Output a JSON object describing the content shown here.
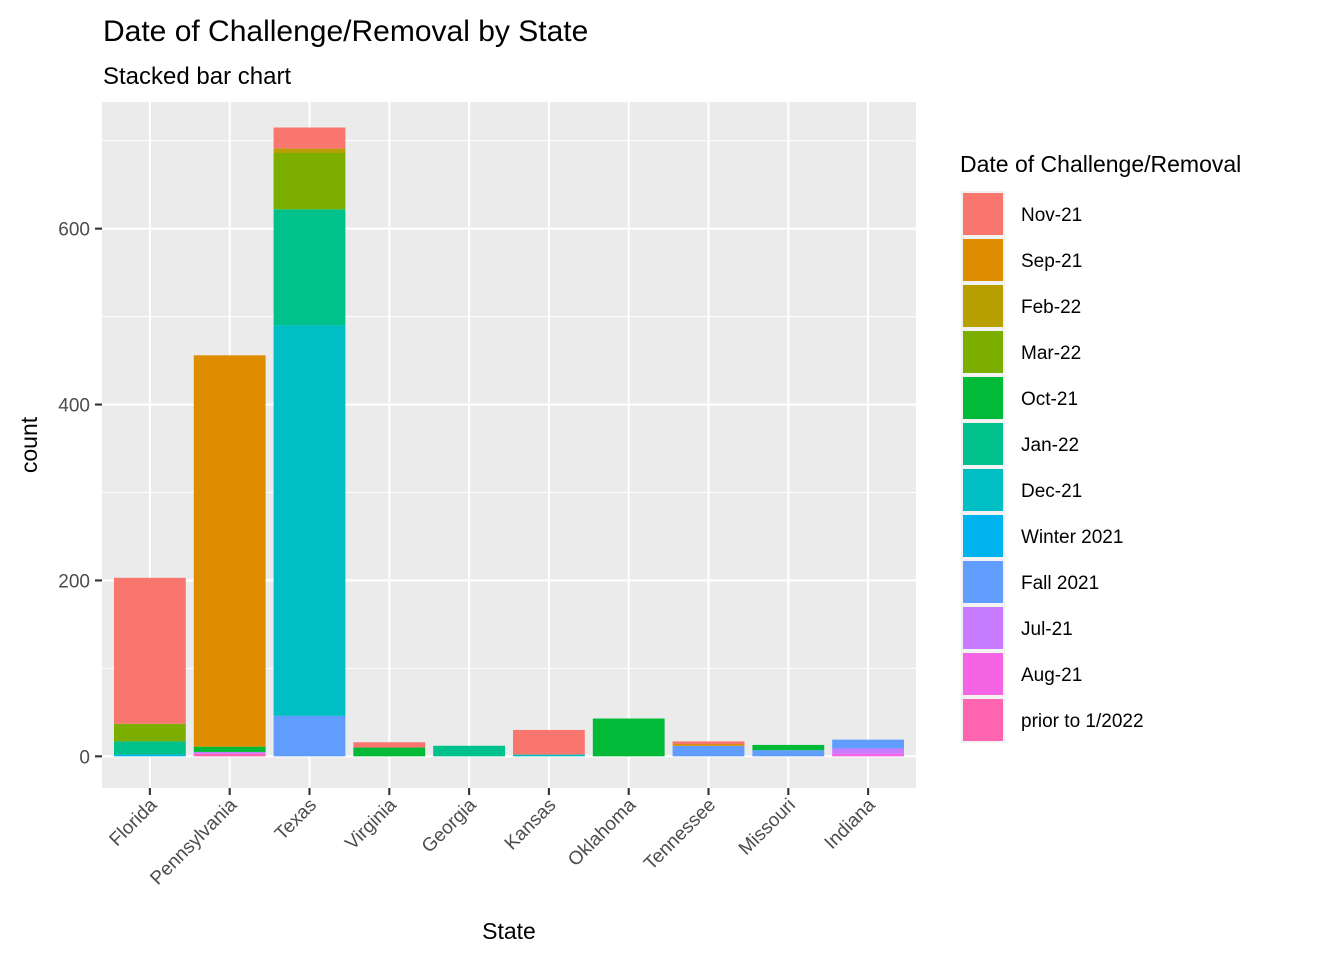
{
  "chart_data": {
    "type": "bar",
    "stacked": true,
    "title": "Date of Challenge/Removal by State",
    "subtitle": "Stacked bar chart",
    "xlabel": "State",
    "ylabel": "count",
    "ylim": [
      -36,
      744
    ],
    "yticks": [
      0,
      200,
      400,
      600
    ],
    "grid": true,
    "legend_position": "right",
    "legend_title": "Date of Challenge/Removal",
    "categories": [
      "Florida",
      "Pennsylvania",
      "Texas",
      "Virginia",
      "Georgia",
      "Kansas",
      "Oklahoma",
      "Tennessee",
      "Missouri",
      "Indiana"
    ],
    "series": [
      {
        "name": "Nov-21",
        "color": "#F8766D",
        "values": [
          166,
          0,
          24,
          6,
          0,
          28,
          0,
          3,
          0,
          0
        ]
      },
      {
        "name": "Sep-21",
        "color": "#DE8C00",
        "values": [
          0,
          445,
          0,
          0,
          0,
          0,
          0,
          2,
          0,
          0
        ]
      },
      {
        "name": "Feb-22",
        "color": "#B79F00",
        "values": [
          0,
          0,
          5,
          0,
          0,
          0,
          0,
          0,
          0,
          0
        ]
      },
      {
        "name": "Mar-22",
        "color": "#7CAE00",
        "values": [
          20,
          0,
          64,
          0,
          0,
          0,
          0,
          0,
          0,
          0
        ]
      },
      {
        "name": "Oct-21",
        "color": "#00BA38",
        "values": [
          0,
          6,
          0,
          10,
          0,
          0,
          43,
          0,
          6,
          0
        ]
      },
      {
        "name": "Jan-22",
        "color": "#00C08B",
        "values": [
          15,
          0,
          132,
          0,
          12,
          0,
          0,
          0,
          0,
          0
        ]
      },
      {
        "name": "Dec-21",
        "color": "#00BFC4",
        "values": [
          0,
          0,
          444,
          0,
          0,
          2,
          0,
          0,
          0,
          0
        ]
      },
      {
        "name": "Winter 2021",
        "color": "#00B4F0",
        "values": [
          2,
          0,
          0,
          0,
          0,
          0,
          0,
          0,
          0,
          0
        ]
      },
      {
        "name": "Fall 2021",
        "color": "#619CFF",
        "values": [
          0,
          0,
          46,
          0,
          0,
          0,
          0,
          12,
          7,
          10
        ]
      },
      {
        "name": "Jul-21",
        "color": "#C77CFF",
        "values": [
          0,
          2,
          0,
          0,
          0,
          0,
          0,
          0,
          0,
          6
        ]
      },
      {
        "name": "Aug-21",
        "color": "#F564E3",
        "values": [
          0,
          0,
          0,
          0,
          0,
          0,
          0,
          0,
          0,
          3
        ]
      },
      {
        "name": "prior to 1/2022",
        "color": "#FF64B0",
        "values": [
          0,
          3,
          0,
          0,
          0,
          0,
          0,
          0,
          0,
          0
        ]
      }
    ]
  }
}
